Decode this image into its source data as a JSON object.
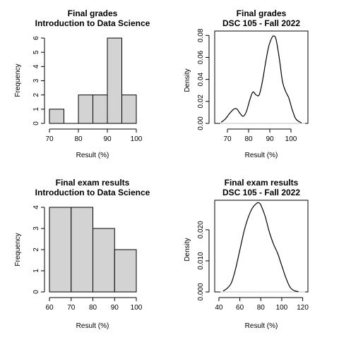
{
  "charts": {
    "top_left": {
      "type": "bar",
      "title": "Final grades",
      "subtitle": "Introduction to Data Science",
      "xlabel": "Result (%)",
      "ylabel": "Frequency",
      "x_ticks": [
        "70",
        "80",
        "90",
        "100"
      ],
      "y_ticks": [
        "0",
        "1",
        "2",
        "3",
        "4",
        "5",
        "6"
      ],
      "xlim": [
        70,
        100
      ],
      "ylim": [
        0,
        6
      ],
      "bins": [
        {
          "from": 70,
          "to": 75,
          "value": 1
        },
        {
          "from": 75,
          "to": 80,
          "value": 0
        },
        {
          "from": 80,
          "to": 85,
          "value": 2
        },
        {
          "from": 85,
          "to": 90,
          "value": 2
        },
        {
          "from": 90,
          "to": 95,
          "value": 6
        },
        {
          "from": 95,
          "to": 100,
          "value": 2
        }
      ],
      "bar_color": "#d3d3d3"
    },
    "top_right": {
      "type": "line",
      "title": "Final grades",
      "subtitle": "DSC 105 - Fall 2022",
      "xlabel": "Result (%)",
      "ylabel": "Density",
      "x_ticks": [
        "70",
        "80",
        "90",
        "100"
      ],
      "y_ticks": [
        "0.00",
        "0.02",
        "0.04",
        "0.06",
        "0.08"
      ],
      "xlim": [
        64,
        108
      ],
      "ylim": [
        0,
        0.084
      ],
      "x": [
        67,
        69,
        71,
        73,
        74.5,
        76,
        77.5,
        79,
        80.5,
        82,
        83.5,
        85,
        86.5,
        88,
        89.5,
        91,
        92,
        93,
        94.5,
        96,
        97.5,
        99,
        100.5,
        102,
        103.5,
        105
      ],
      "y": [
        0.001,
        0.004,
        0.009,
        0.013,
        0.013,
        0.009,
        0.0065,
        0.011,
        0.021,
        0.0285,
        0.026,
        0.026,
        0.038,
        0.055,
        0.07,
        0.078,
        0.0795,
        0.076,
        0.059,
        0.038,
        0.029,
        0.023,
        0.013,
        0.005,
        0.002,
        0.0005
      ]
    },
    "bottom_left": {
      "type": "bar",
      "title": "Final exam results",
      "subtitle": "Introduction to Data Science",
      "xlabel": "Result (%)",
      "ylabel": "Frequency",
      "x_ticks": [
        "60",
        "70",
        "80",
        "90",
        "100"
      ],
      "y_ticks": [
        "0",
        "1",
        "2",
        "3",
        "4"
      ],
      "xlim": [
        60,
        100
      ],
      "ylim": [
        0,
        4
      ],
      "bins": [
        {
          "from": 60,
          "to": 70,
          "value": 4
        },
        {
          "from": 70,
          "to": 80,
          "value": 4
        },
        {
          "from": 80,
          "to": 90,
          "value": 3
        },
        {
          "from": 90,
          "to": 100,
          "value": 2
        }
      ],
      "bar_color": "#d3d3d3"
    },
    "bottom_right": {
      "type": "line",
      "title": "Final exam results",
      "subtitle": "DSC 105 - Fall 2022",
      "xlabel": "Result (%)",
      "ylabel": "Density",
      "x_ticks": [
        "40",
        "60",
        "80",
        "100",
        "120"
      ],
      "y_ticks": [
        "0.000",
        "0.010",
        "0.020"
      ],
      "xlim": [
        36,
        125
      ],
      "ylim": [
        0,
        0.0295
      ],
      "x": [
        44,
        48,
        52,
        56,
        60,
        64,
        68,
        72,
        76,
        78,
        80,
        84,
        88,
        92,
        96,
        100,
        104,
        108,
        112,
        116
      ],
      "y": [
        0.0003,
        0.0012,
        0.003,
        0.0075,
        0.0135,
        0.0195,
        0.024,
        0.027,
        0.0285,
        0.0287,
        0.028,
        0.0245,
        0.0195,
        0.0155,
        0.0125,
        0.0085,
        0.0045,
        0.0015,
        0.0004,
        0.0001
      ]
    }
  },
  "chart_data": [
    {
      "type": "bar",
      "title": "Final grades",
      "subtitle": "Introduction to Data Science",
      "xlabel": "Result (%)",
      "ylabel": "Frequency",
      "categories": [
        "70-75",
        "75-80",
        "80-85",
        "85-90",
        "90-95",
        "95-100"
      ],
      "values": [
        1,
        0,
        2,
        2,
        6,
        2
      ],
      "xlim": [
        70,
        100
      ],
      "ylim": [
        0,
        6
      ],
      "grid": false
    },
    {
      "type": "line",
      "title": "Final grades",
      "subtitle": "DSC 105 - Fall 2022",
      "xlabel": "Result (%)",
      "ylabel": "Density",
      "x": [
        67,
        69,
        71,
        73,
        74.5,
        76,
        77.5,
        79,
        80.5,
        82,
        83.5,
        85,
        86.5,
        88,
        89.5,
        91,
        92,
        93,
        94.5,
        96,
        97.5,
        99,
        100.5,
        102,
        103.5,
        105
      ],
      "y": [
        0.001,
        0.004,
        0.009,
        0.013,
        0.013,
        0.009,
        0.0065,
        0.011,
        0.021,
        0.0285,
        0.026,
        0.026,
        0.038,
        0.055,
        0.07,
        0.078,
        0.0795,
        0.076,
        0.059,
        0.038,
        0.029,
        0.023,
        0.013,
        0.005,
        0.002,
        0.0005
      ],
      "xlim": [
        64,
        108
      ],
      "ylim": [
        0,
        0.084
      ],
      "grid": false
    },
    {
      "type": "bar",
      "title": "Final exam results",
      "subtitle": "Introduction to Data Science",
      "xlabel": "Result (%)",
      "ylabel": "Frequency",
      "categories": [
        "60-70",
        "70-80",
        "80-90",
        "90-100"
      ],
      "values": [
        4,
        4,
        3,
        2
      ],
      "xlim": [
        60,
        100
      ],
      "ylim": [
        0,
        4
      ],
      "grid": false
    },
    {
      "type": "line",
      "title": "Final exam results",
      "subtitle": "DSC 105 - Fall 2022",
      "xlabel": "Result (%)",
      "ylabel": "Density",
      "x": [
        44,
        48,
        52,
        56,
        60,
        64,
        68,
        72,
        76,
        78,
        80,
        84,
        88,
        92,
        96,
        100,
        104,
        108,
        112,
        116
      ],
      "y": [
        0.0003,
        0.0012,
        0.003,
        0.0075,
        0.0135,
        0.0195,
        0.024,
        0.027,
        0.0285,
        0.0287,
        0.028,
        0.0245,
        0.0195,
        0.0155,
        0.0125,
        0.0085,
        0.0045,
        0.0015,
        0.0004,
        0.0001
      ],
      "xlim": [
        36,
        125
      ],
      "ylim": [
        0,
        0.0295
      ],
      "grid": false
    }
  ]
}
